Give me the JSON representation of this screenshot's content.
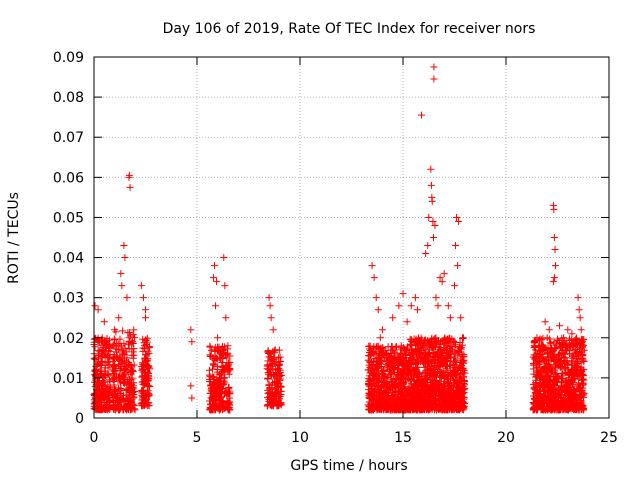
{
  "chart_data": {
    "type": "scatter",
    "title": "Day 106 of 2019, Rate Of TEC Index for receiver nors",
    "xlabel": "GPS time / hours",
    "ylabel": "ROTI / TECUs",
    "xlim": [
      0,
      25
    ],
    "ylim": [
      0,
      0.09
    ],
    "xticks": [
      0,
      5,
      10,
      15,
      20,
      25
    ],
    "yticks": [
      0,
      0.01,
      0.02,
      0.03,
      0.04,
      0.05,
      0.06,
      0.07,
      0.08,
      0.09
    ],
    "grid": true,
    "marker": "+",
    "marker_color": "#ff0000",
    "series": [
      {
        "name": "ROTI",
        "points": [
          [
            0.05,
            0.028
          ],
          [
            0.1,
            0.015
          ],
          [
            0.2,
            0.008
          ],
          [
            0.3,
            0.012
          ],
          [
            0.4,
            0.006
          ],
          [
            0.5,
            0.01
          ],
          [
            0.2,
            0.027
          ],
          [
            0.4,
            0.02
          ],
          [
            0.5,
            0.024
          ],
          [
            0.6,
            0.018
          ],
          [
            0.7,
            0.005
          ],
          [
            0.9,
            0.012
          ],
          [
            1.0,
            0.022
          ],
          [
            1.1,
            0.018
          ],
          [
            1.2,
            0.025
          ],
          [
            1.3,
            0.036
          ],
          [
            1.35,
            0.033
          ],
          [
            1.45,
            0.043
          ],
          [
            1.5,
            0.04
          ],
          [
            1.6,
            0.03
          ],
          [
            1.7,
            0.06
          ],
          [
            1.72,
            0.0605
          ],
          [
            1.75,
            0.0575
          ],
          [
            1.5,
            0.01
          ],
          [
            1.6,
            0.015
          ],
          [
            1.7,
            0.02
          ],
          [
            1.4,
            0.005
          ],
          [
            1.8,
            0.012
          ],
          [
            2.3,
            0.033
          ],
          [
            2.4,
            0.03
          ],
          [
            2.5,
            0.025
          ],
          [
            2.45,
            0.018
          ],
          [
            2.6,
            0.01
          ],
          [
            2.35,
            0.005
          ],
          [
            2.5,
            0.027
          ],
          [
            4.7,
            0.022
          ],
          [
            4.75,
            0.019
          ],
          [
            4.7,
            0.008
          ],
          [
            4.75,
            0.005
          ],
          [
            5.8,
            0.035
          ],
          [
            5.9,
            0.028
          ],
          [
            6.0,
            0.02
          ],
          [
            6.1,
            0.015
          ],
          [
            5.85,
            0.038
          ],
          [
            5.95,
            0.034
          ],
          [
            6.3,
            0.04
          ],
          [
            6.35,
            0.033
          ],
          [
            6.4,
            0.025
          ],
          [
            6.5,
            0.018
          ],
          [
            6.6,
            0.012
          ],
          [
            6.2,
            0.008
          ],
          [
            8.5,
            0.03
          ],
          [
            8.6,
            0.025
          ],
          [
            8.7,
            0.022
          ],
          [
            8.8,
            0.017
          ],
          [
            8.9,
            0.012
          ],
          [
            8.55,
            0.028
          ],
          [
            13.5,
            0.038
          ],
          [
            13.6,
            0.035
          ],
          [
            13.7,
            0.03
          ],
          [
            13.8,
            0.027
          ],
          [
            13.9,
            0.02
          ],
          [
            14.0,
            0.022
          ],
          [
            14.5,
            0.025
          ],
          [
            14.8,
            0.028
          ],
          [
            15.0,
            0.031
          ],
          [
            15.2,
            0.024
          ],
          [
            15.4,
            0.028
          ],
          [
            15.6,
            0.03
          ],
          [
            15.7,
            0.027
          ],
          [
            15.9,
            0.0755
          ],
          [
            16.1,
            0.041
          ],
          [
            16.2,
            0.043
          ],
          [
            16.25,
            0.05
          ],
          [
            16.35,
            0.062
          ],
          [
            16.38,
            0.058
          ],
          [
            16.4,
            0.055
          ],
          [
            16.42,
            0.054
          ],
          [
            16.45,
            0.049
          ],
          [
            16.48,
            0.045
          ],
          [
            16.5,
            0.0875
          ],
          [
            16.5,
            0.0845
          ],
          [
            16.55,
            0.048
          ],
          [
            16.6,
            0.03
          ],
          [
            16.7,
            0.028
          ],
          [
            16.8,
            0.035
          ],
          [
            16.9,
            0.034
          ],
          [
            17.0,
            0.036
          ],
          [
            17.2,
            0.028
          ],
          [
            17.3,
            0.025
          ],
          [
            17.5,
            0.033
          ],
          [
            17.55,
            0.043
          ],
          [
            17.6,
            0.05
          ],
          [
            17.7,
            0.049
          ],
          [
            17.65,
            0.038
          ],
          [
            17.8,
            0.025
          ],
          [
            17.9,
            0.02
          ],
          [
            21.5,
            0.02
          ],
          [
            21.7,
            0.018
          ],
          [
            21.9,
            0.024
          ],
          [
            22.0,
            0.02
          ],
          [
            22.1,
            0.022
          ],
          [
            22.3,
            0.053
          ],
          [
            22.32,
            0.052
          ],
          [
            22.35,
            0.045
          ],
          [
            22.38,
            0.042
          ],
          [
            22.4,
            0.038
          ],
          [
            22.3,
            0.034
          ],
          [
            22.35,
            0.035
          ],
          [
            22.6,
            0.023
          ],
          [
            22.8,
            0.02
          ],
          [
            23.0,
            0.022
          ],
          [
            23.2,
            0.021
          ],
          [
            23.3,
            0.018
          ],
          [
            23.5,
            0.03
          ],
          [
            23.55,
            0.027
          ],
          [
            23.6,
            0.025
          ],
          [
            23.65,
            0.022
          ]
        ],
        "clusters": [
          {
            "x_range": [
              0.0,
              0.8
            ],
            "y_range": [
              0.002,
              0.02
            ],
            "count": 260
          },
          {
            "x_range": [
              0.9,
              2.0
            ],
            "y_range": [
              0.002,
              0.022
            ],
            "count": 260
          },
          {
            "x_range": [
              2.3,
              2.7
            ],
            "y_range": [
              0.003,
              0.02
            ],
            "count": 120
          },
          {
            "x_range": [
              5.6,
              6.6
            ],
            "y_range": [
              0.002,
              0.018
            ],
            "count": 260
          },
          {
            "x_range": [
              8.4,
              9.1
            ],
            "y_range": [
              0.003,
              0.017
            ],
            "count": 160
          },
          {
            "x_range": [
              13.3,
              15.3
            ],
            "y_range": [
              0.002,
              0.018
            ],
            "count": 700
          },
          {
            "x_range": [
              15.3,
              18.0
            ],
            "y_range": [
              0.002,
              0.02
            ],
            "count": 1100
          },
          {
            "x_range": [
              21.3,
              23.8
            ],
            "y_range": [
              0.002,
              0.02
            ],
            "count": 900
          }
        ]
      }
    ]
  }
}
